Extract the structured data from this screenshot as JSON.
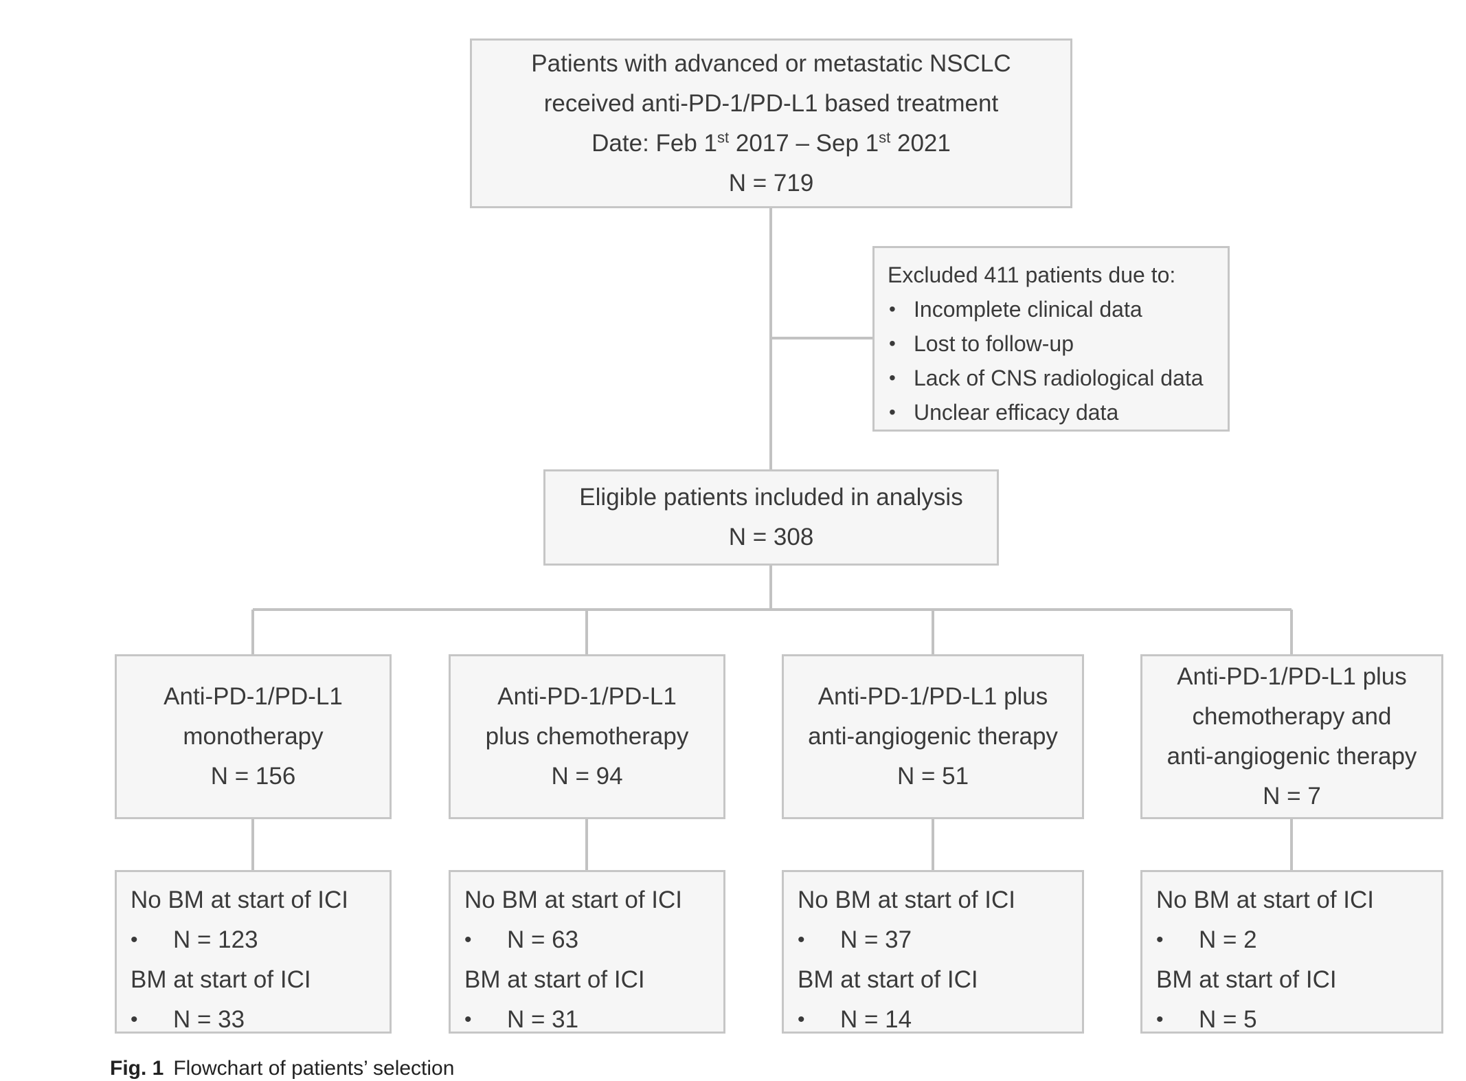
{
  "top_box": {
    "line1": "Patients with advanced or metastatic NSCLC",
    "line2": "received anti-PD-1/PD-L1 based treatment",
    "date_prefix": "Date: Feb 1",
    "date_sup1": "st",
    "date_mid": " 2017 – Sep 1",
    "date_sup2": "st",
    "date_suffix": " 2021",
    "n": "N = 719"
  },
  "exclusion": {
    "heading": "Excluded 411 patients due to:",
    "reasons": [
      "Incomplete clinical data",
      "Lost to follow-up",
      "Lack of CNS radiological data",
      "Unclear efficacy data"
    ]
  },
  "eligible": {
    "line1": "Eligible patients included in analysis",
    "n": "N = 308"
  },
  "groups": [
    {
      "lines": [
        "Anti-PD-1/PD-L1",
        "monotherapy"
      ],
      "n": "N = 156",
      "no_bm_label": "No BM at start of ICI",
      "no_bm_n": "N = 123",
      "bm_label": "BM at start of ICI",
      "bm_n": "N = 33"
    },
    {
      "lines": [
        "Anti-PD-1/PD-L1",
        "plus chemotherapy"
      ],
      "n": "N = 94",
      "no_bm_label": "No BM at start of ICI",
      "no_bm_n": "N = 63",
      "bm_label": "BM at start of ICI",
      "bm_n": "N = 31"
    },
    {
      "lines": [
        "Anti-PD-1/PD-L1 plus",
        "anti-angiogenic therapy"
      ],
      "n": "N = 51",
      "no_bm_label": "No BM at start of ICI",
      "no_bm_n": "N = 37",
      "bm_label": "BM at start of ICI",
      "bm_n": "N = 14"
    },
    {
      "lines": [
        "Anti-PD-1/PD-L1 plus",
        "chemotherapy and",
        "anti-angiogenic therapy"
      ],
      "n": "N = 7",
      "no_bm_label": "No BM at start of ICI",
      "no_bm_n": "N = 2",
      "bm_label": "BM at start of ICI",
      "bm_n": "N = 5"
    }
  ],
  "caption": {
    "label": "Fig. 1",
    "text": "Flowchart of patients’ selection"
  },
  "colors": {
    "box_fill": "#f6f6f6",
    "box_border": "#c6c6c6",
    "connector": "#c2c2c2",
    "text": "#3a3a3a"
  }
}
